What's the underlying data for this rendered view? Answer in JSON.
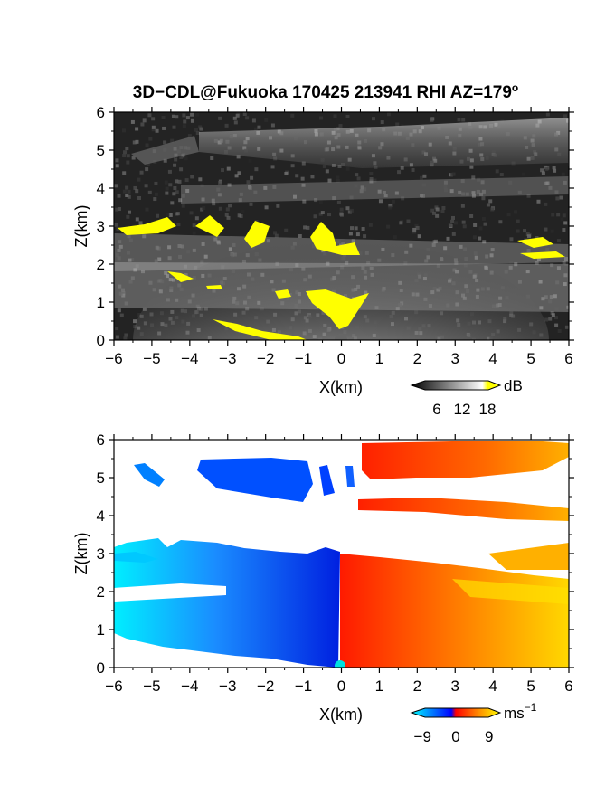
{
  "figure": {
    "title": "3D−CDL@Fukuoka 170425 213941 RHI AZ=179",
    "title_superscript": "o"
  },
  "chart_data": [
    {
      "type": "heatmap",
      "name": "backscatter-intensity",
      "xlabel": "X(km)",
      "ylabel": "Z(km)",
      "xlim": [
        -6,
        6
      ],
      "ylim": [
        0,
        6
      ],
      "xticks": [
        "−6",
        "−5",
        "−4",
        "−3",
        "−2",
        "−1",
        "0",
        "1",
        "2",
        "3",
        "4",
        "5",
        "6"
      ],
      "yticks": [
        "0",
        "1",
        "2",
        "3",
        "4",
        "5",
        "6"
      ],
      "colorbar": {
        "unit": "dB",
        "ticks": [
          "6",
          "12",
          "18"
        ],
        "tick_values": [
          6,
          12,
          18
        ],
        "range": [
          0,
          21
        ],
        "colors": [
          "#000000",
          "#ffffff",
          "#ffff00"
        ]
      },
      "regions": [
        {
          "label": "high-intensity layer (yellow)",
          "x": [
            -6,
            -4.4
          ],
          "z": [
            2.9,
            3.1
          ]
        },
        {
          "label": "high-intensity layer (yellow)",
          "x": [
            -4.2,
            -3.6
          ],
          "z": [
            2.8,
            3.2
          ]
        },
        {
          "label": "high-intensity layer (yellow)",
          "x": [
            -3.3,
            -2.8
          ],
          "z": [
            2.4,
            2.9
          ]
        },
        {
          "label": "high-intensity layer (yellow)",
          "x": [
            -2.5,
            -1.5
          ],
          "z": [
            2.3,
            3.2
          ]
        },
        {
          "label": "high-intensity layer (yellow)",
          "x": [
            -0.9,
            1.1
          ],
          "z": [
            2.2,
            3.0
          ]
        },
        {
          "label": "high-intensity layer (yellow)",
          "x": [
            4.7,
            6
          ],
          "z": [
            2.2,
            2.6
          ]
        },
        {
          "label": "high-intensity layer (yellow)",
          "x": [
            -0.9,
            0.7
          ],
          "z": [
            0.3,
            1.2
          ]
        },
        {
          "label": "high-intensity layer (yellow)",
          "x": [
            -5,
            -3.9
          ],
          "z": [
            1.4,
            1.7
          ]
        }
      ]
    },
    {
      "type": "heatmap",
      "name": "doppler-velocity",
      "xlabel": "X(km)",
      "ylabel": "Z(km)",
      "xlim": [
        -6,
        6
      ],
      "ylim": [
        0,
        6
      ],
      "xticks": [
        "−6",
        "−5",
        "−4",
        "−3",
        "−2",
        "−1",
        "0",
        "1",
        "2",
        "3",
        "4",
        "5",
        "6"
      ],
      "yticks": [
        "0",
        "1",
        "2",
        "3",
        "4",
        "5",
        "6"
      ],
      "colorbar": {
        "unit": "ms",
        "unit_superscript": "−1",
        "ticks": [
          "−9",
          "0",
          "9"
        ],
        "tick_values": [
          -9,
          0,
          9
        ],
        "range": [
          -12,
          12
        ],
        "colors": [
          "#00ffff",
          "#0000ff",
          "#ff0000",
          "#ffff00"
        ]
      },
      "regions": [
        {
          "label": "negative velocity (blue)",
          "x": [
            -6,
            -0.1
          ],
          "z": [
            0.5,
            3.3
          ]
        },
        {
          "label": "negative velocity (blue)",
          "x": [
            -3.8,
            -0.8
          ],
          "z": [
            4.5,
            5.5
          ]
        },
        {
          "label": "negative velocity (blue)",
          "x": [
            -5.5,
            -4.7
          ],
          "z": [
            4.8,
            5.4
          ]
        },
        {
          "label": "positive velocity (red/yellow)",
          "x": [
            -0.1,
            6
          ],
          "z": [
            0,
            2.8
          ]
        },
        {
          "label": "positive velocity (red/yellow)",
          "x": [
            0.6,
            6
          ],
          "z": [
            4.8,
            6
          ]
        },
        {
          "label": "positive velocity (red/yellow)",
          "x": [
            0.5,
            6
          ],
          "z": [
            4.1,
            4.4
          ]
        }
      ]
    }
  ]
}
